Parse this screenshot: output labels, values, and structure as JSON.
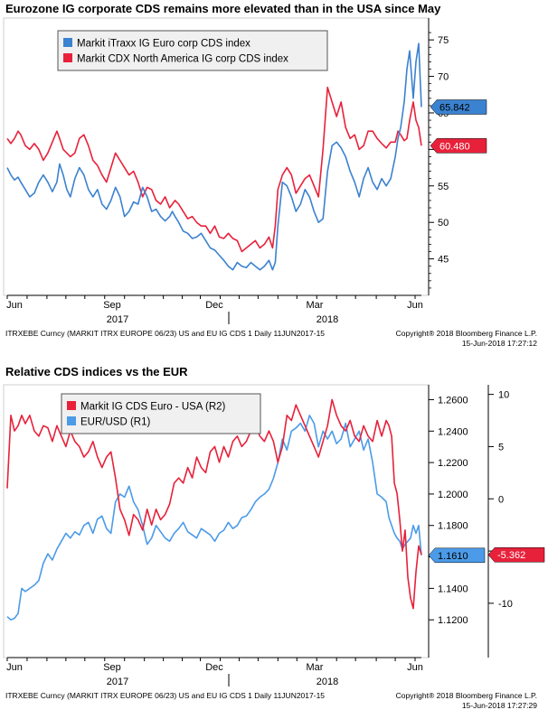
{
  "chart_data": [
    {
      "type": "line",
      "title": "Eurozone IG corporate CDS remains more elevated than in the USA since May",
      "x_tick_labels": [
        "Jun",
        "Sep",
        "Dec",
        "Mar",
        "Jun"
      ],
      "year_labels": [
        "2017",
        "2018"
      ],
      "ylim": [
        40,
        77
      ],
      "y_ticks": [
        45,
        50,
        55,
        60,
        65,
        70,
        75
      ],
      "grid": false,
      "legend_position": "top-left",
      "footer_left": "ITRXEBE Curncy (MARKIT ITRX EUROPE 06/23) US and EU IG CDS 1  Daily 11JUN2017-15",
      "footer_right_1": "Copyright® 2018 Bloomberg Finance L.P.",
      "footer_right_2": "15-Jun-2018 17:27:12",
      "series": [
        {
          "name": "Markit iTraxx IG Euro corp CDS index",
          "color": "#3b82d0",
          "last_label": "65.842",
          "x": [
            0,
            4,
            8,
            12,
            15,
            20,
            25,
            30,
            35,
            40,
            45,
            50,
            55,
            58,
            62,
            66,
            70,
            75,
            80,
            85,
            90,
            95,
            100,
            105,
            110,
            115,
            120,
            125,
            130,
            135,
            140,
            145,
            150,
            155,
            160,
            165,
            170,
            175,
            180,
            183,
            186,
            190,
            195,
            200,
            205,
            210,
            215,
            220,
            225,
            230,
            235,
            240,
            245,
            250,
            255,
            260,
            265,
            270,
            275,
            280,
            285,
            290,
            294,
            297,
            300,
            305,
            310,
            315,
            320,
            325,
            330,
            335,
            340,
            345,
            350,
            355,
            360,
            365,
            370,
            375,
            380,
            385,
            390,
            395,
            400,
            405,
            410,
            415,
            420,
            425,
            430,
            433,
            436,
            440,
            443,
            446,
            450,
            453,
            456,
            459
          ],
          "y": [
            57.5,
            56.5,
            55.8,
            56.2,
            55.5,
            54.5,
            53.5,
            54.0,
            55.5,
            56.5,
            55.5,
            54.2,
            55.5,
            58.0,
            56.5,
            54.5,
            53.5,
            56.0,
            57.5,
            56.5,
            54.5,
            53.5,
            54.5,
            52.5,
            51.8,
            53.0,
            54.8,
            53.5,
            50.8,
            51.5,
            52.8,
            52.5,
            54.8,
            53.5,
            51.5,
            51.8,
            50.8,
            50.2,
            50.8,
            51.5,
            50.8,
            50.0,
            48.8,
            48.5,
            47.8,
            48.0,
            48.5,
            47.5,
            46.5,
            46.2,
            45.5,
            44.8,
            44.0,
            43.5,
            44.5,
            44.0,
            43.8,
            44.5,
            44.0,
            43.5,
            44.0,
            44.8,
            43.5,
            44.5,
            49.5,
            55.5,
            55.0,
            53.5,
            51.5,
            52.5,
            54.5,
            53.5,
            51.5,
            50.0,
            50.5,
            57.0,
            60.5,
            61.0,
            60.2,
            59.0,
            57.0,
            55.5,
            53.5,
            56.0,
            57.5,
            55.5,
            54.5,
            56.0,
            55.0,
            56.0,
            59.0,
            61.5,
            63.0,
            66.5,
            71.0,
            73.5,
            67.0,
            72.0,
            74.5,
            65.8
          ]
        },
        {
          "name": "Markit CDX North America IG corp CDS index",
          "color": "#e8213a",
          "last_label": "60.480",
          "x": [
            0,
            4,
            8,
            12,
            15,
            20,
            25,
            30,
            35,
            40,
            45,
            50,
            55,
            58,
            62,
            66,
            70,
            75,
            80,
            85,
            90,
            95,
            100,
            105,
            110,
            115,
            120,
            125,
            130,
            135,
            140,
            145,
            150,
            155,
            160,
            165,
            170,
            175,
            180,
            183,
            186,
            190,
            195,
            200,
            205,
            210,
            215,
            220,
            225,
            230,
            235,
            240,
            245,
            250,
            255,
            260,
            265,
            270,
            275,
            280,
            285,
            290,
            294,
            297,
            300,
            305,
            310,
            315,
            320,
            325,
            330,
            335,
            340,
            345,
            350,
            355,
            360,
            365,
            370,
            375,
            380,
            385,
            390,
            395,
            400,
            405,
            410,
            415,
            420,
            425,
            430,
            433,
            436,
            440,
            443,
            446,
            450,
            453,
            456,
            459
          ],
          "y": [
            61.5,
            60.8,
            61.5,
            62.5,
            62.0,
            60.5,
            60.0,
            60.8,
            60.0,
            58.5,
            59.5,
            61.0,
            62.5,
            61.5,
            60.0,
            59.5,
            59.0,
            59.5,
            61.5,
            62.0,
            60.5,
            58.5,
            57.8,
            56.5,
            55.5,
            57.5,
            59.5,
            58.5,
            57.5,
            56.5,
            57.0,
            55.5,
            53.5,
            54.8,
            54.5,
            53.0,
            52.5,
            53.5,
            52.0,
            52.5,
            53.0,
            52.5,
            51.5,
            50.5,
            50.8,
            50.0,
            49.5,
            49.5,
            48.5,
            49.5,
            48.0,
            47.8,
            48.5,
            47.8,
            47.5,
            46.0,
            46.5,
            47.0,
            47.5,
            46.5,
            47.0,
            48.0,
            46.5,
            49.5,
            54.5,
            56.5,
            57.5,
            56.5,
            54.0,
            55.0,
            56.0,
            56.5,
            55.0,
            53.5,
            60.0,
            68.5,
            66.5,
            64.5,
            66.5,
            63.0,
            61.5,
            62.0,
            60.0,
            60.5,
            62.5,
            62.5,
            61.5,
            60.8,
            60.2,
            61.0,
            61.0,
            62.5,
            62.0,
            61.2,
            61.5,
            64.0,
            66.5,
            64.0,
            63.0,
            60.5
          ]
        }
      ]
    },
    {
      "type": "line",
      "title": "Relative CDS indices vs the EUR",
      "x_tick_labels": [
        "Jun",
        "Sep",
        "Dec",
        "Mar",
        "Jun"
      ],
      "year_labels": [
        "2017",
        "2018"
      ],
      "left_axis": {
        "ylim": [
          1.096,
          1.266
        ],
        "y_ticks": [
          1.12,
          1.14,
          1.16,
          1.18,
          1.2,
          1.22,
          1.24,
          1.26
        ],
        "y_tick_labels": [
          "1.1200",
          "1.1400",
          "1.1600",
          "1.1800",
          "1.2000",
          "1.2200",
          "1.2400",
          "1.2600"
        ]
      },
      "right_axis": {
        "ylim": [
          -15.2,
          10.4
        ],
        "y_ticks": [
          -10,
          -5,
          0,
          5,
          10
        ],
        "y_tick_labels": [
          "-10",
          "-5",
          "0",
          "5",
          "10"
        ]
      },
      "grid": false,
      "legend_position": "top-left",
      "footer_left": "ITRXEBE Curncy (MARKIT ITRX EUROPE 06/23) US and EU IG CDS 1  Daily 11JUN2017-15",
      "footer_right_1": "Copyright® 2018 Bloomberg Finance L.P.",
      "footer_right_2": "15-Jun-2018 17:27:29",
      "series": [
        {
          "name": "Markit IG CDS Euro - USA (R2)",
          "axis": "right",
          "color": "#e8213a",
          "last_label": "-5.362",
          "x": [
            0,
            4,
            8,
            12,
            16,
            20,
            25,
            30,
            35,
            40,
            45,
            50,
            55,
            60,
            65,
            70,
            75,
            80,
            85,
            90,
            95,
            100,
            105,
            110,
            115,
            120,
            125,
            130,
            135,
            140,
            145,
            150,
            155,
            160,
            165,
            170,
            175,
            180,
            185,
            190,
            195,
            200,
            205,
            210,
            215,
            220,
            225,
            230,
            235,
            240,
            245,
            250,
            255,
            260,
            265,
            270,
            275,
            280,
            285,
            290,
            295,
            300,
            305,
            310,
            315,
            320,
            325,
            330,
            335,
            340,
            345,
            350,
            355,
            360,
            365,
            370,
            375,
            380,
            385,
            390,
            395,
            400,
            405,
            410,
            415,
            420,
            423,
            426,
            429,
            432,
            435,
            438,
            441,
            444,
            447,
            450,
            453,
            456,
            459
          ],
          "y": [
            1.0,
            8.0,
            6.5,
            7.0,
            8.0,
            7.2,
            8.0,
            6.5,
            6.0,
            7.0,
            6.8,
            5.5,
            7.0,
            6.0,
            5.0,
            6.5,
            5.5,
            5.0,
            4.0,
            4.5,
            5.5,
            4.0,
            3.0,
            4.0,
            4.5,
            2.0,
            -1.0,
            -2.0,
            -3.5,
            -1.5,
            -2.0,
            -3.0,
            -1.0,
            -2.5,
            -1.0,
            -2.0,
            -1.5,
            -0.5,
            1.5,
            2.0,
            1.5,
            3.0,
            2.0,
            4.0,
            3.0,
            2.5,
            4.5,
            5.0,
            3.5,
            5.0,
            4.0,
            5.5,
            6.0,
            5.0,
            5.5,
            6.5,
            7.0,
            6.0,
            5.5,
            6.5,
            5.5,
            3.5,
            5.0,
            8.0,
            7.5,
            9.0,
            8.0,
            7.0,
            6.0,
            5.0,
            4.0,
            5.5,
            7.0,
            9.5,
            8.0,
            7.0,
            6.5,
            7.5,
            6.0,
            5.5,
            7.0,
            6.0,
            5.5,
            7.5,
            6.0,
            7.5,
            7.0,
            6.0,
            1.5,
            0.5,
            -2.0,
            -5.0,
            -3.0,
            -7.5,
            -9.5,
            -10.5,
            -7.0,
            -4.5,
            -5.36
          ]
        },
        {
          "name": "EUR/USD (R1)",
          "axis": "left",
          "color": "#4b9be8",
          "last_label": "1.1610",
          "x": [
            0,
            4,
            8,
            12,
            16,
            20,
            25,
            30,
            35,
            40,
            45,
            50,
            55,
            60,
            65,
            70,
            75,
            80,
            85,
            90,
            95,
            100,
            105,
            110,
            115,
            120,
            125,
            130,
            135,
            140,
            145,
            150,
            155,
            160,
            165,
            170,
            175,
            180,
            185,
            190,
            195,
            200,
            205,
            210,
            215,
            220,
            225,
            230,
            235,
            240,
            245,
            250,
            255,
            260,
            265,
            270,
            275,
            280,
            285,
            290,
            295,
            300,
            305,
            310,
            315,
            320,
            325,
            330,
            335,
            340,
            345,
            350,
            355,
            360,
            365,
            370,
            375,
            380,
            385,
            390,
            395,
            400,
            405,
            410,
            415,
            420,
            423,
            426,
            429,
            432,
            435,
            438,
            441,
            444,
            447,
            450,
            453,
            456,
            459
          ],
          "y": [
            1.122,
            1.12,
            1.121,
            1.124,
            1.14,
            1.138,
            1.14,
            1.142,
            1.145,
            1.156,
            1.162,
            1.158,
            1.165,
            1.17,
            1.175,
            1.172,
            1.176,
            1.174,
            1.18,
            1.182,
            1.175,
            1.184,
            1.186,
            1.178,
            1.175,
            1.195,
            1.2,
            1.198,
            1.205,
            1.195,
            1.19,
            1.18,
            1.168,
            1.172,
            1.18,
            1.176,
            1.172,
            1.17,
            1.175,
            1.178,
            1.182,
            1.176,
            1.174,
            1.172,
            1.178,
            1.176,
            1.174,
            1.17,
            1.175,
            1.177,
            1.182,
            1.178,
            1.18,
            1.185,
            1.186,
            1.19,
            1.195,
            1.198,
            1.2,
            1.203,
            1.21,
            1.22,
            1.235,
            1.228,
            1.24,
            1.242,
            1.245,
            1.24,
            1.25,
            1.245,
            1.23,
            1.24,
            1.235,
            1.24,
            1.232,
            1.235,
            1.245,
            1.23,
            1.235,
            1.24,
            1.228,
            1.235,
            1.22,
            1.2,
            1.198,
            1.195,
            1.185,
            1.18,
            1.175,
            1.172,
            1.17,
            1.165,
            1.168,
            1.17,
            1.172,
            1.18,
            1.175,
            1.18,
            1.161
          ]
        }
      ]
    }
  ]
}
